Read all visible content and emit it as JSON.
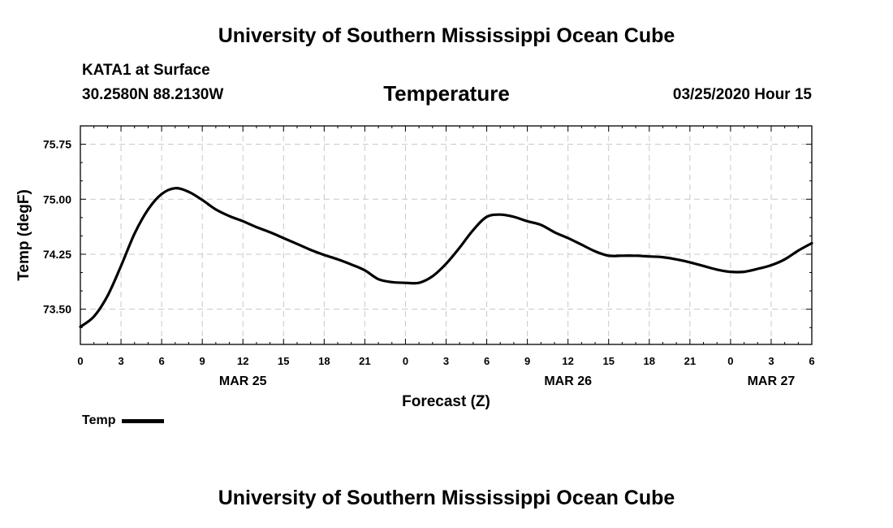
{
  "header": {
    "title": "University of Southern Mississippi Ocean Cube",
    "station": "KATA1 at Surface",
    "coords": "30.2580N 88.2130W",
    "chart_title": "Temperature",
    "issued": "03/25/2020 Hour 15"
  },
  "footer": {
    "title": "University of Southern Mississippi Ocean Cube"
  },
  "chart_data": {
    "type": "line",
    "title": "Temperature",
    "xlabel": "Forecast (Z)",
    "ylabel": "Temp (degF)",
    "xlim": [
      0,
      54
    ],
    "ylim": [
      73.02,
      76.0
    ],
    "x_ticks": [
      0,
      3,
      6,
      9,
      12,
      15,
      18,
      21,
      24,
      27,
      30,
      33,
      36,
      39,
      42,
      45,
      48,
      51,
      54
    ],
    "x_tick_labels": [
      "0",
      "3",
      "6",
      "9",
      "12",
      "15",
      "18",
      "21",
      "0",
      "3",
      "6",
      "9",
      "12",
      "15",
      "18",
      "21",
      "0",
      "3",
      "6"
    ],
    "date_labels": [
      {
        "at": 12,
        "label": "MAR 25"
      },
      {
        "at": 36,
        "label": "MAR 26"
      },
      {
        "at": 51,
        "label": "MAR 27"
      }
    ],
    "y_ticks": [
      73.5,
      74.25,
      75.0,
      75.75
    ],
    "y_tick_labels": [
      "73.50",
      "74.25",
      "75.00",
      "75.75"
    ],
    "grid": true,
    "legend_position": "bottom-left",
    "series": [
      {
        "name": "Temp",
        "color": "#000000",
        "x": [
          0,
          1,
          2,
          3,
          4,
          5,
          6,
          7,
          8,
          9,
          10,
          11,
          12,
          13,
          14,
          15,
          16,
          17,
          18,
          19,
          20,
          21,
          22,
          23,
          24,
          25,
          26,
          27,
          28,
          29,
          30,
          31,
          32,
          33,
          34,
          35,
          36,
          37,
          38,
          39,
          40,
          41,
          42,
          43,
          44,
          45,
          46,
          47,
          48,
          49,
          50,
          51,
          52,
          53,
          54
        ],
        "values": [
          73.26,
          73.4,
          73.68,
          74.09,
          74.53,
          74.86,
          75.07,
          75.15,
          75.1,
          74.99,
          74.86,
          74.77,
          74.7,
          74.62,
          74.55,
          74.47,
          74.39,
          74.31,
          74.24,
          74.18,
          74.11,
          74.03,
          73.91,
          73.87,
          73.86,
          73.86,
          73.95,
          74.12,
          74.34,
          74.58,
          74.76,
          74.79,
          74.76,
          74.7,
          74.65,
          74.55,
          74.47,
          74.38,
          74.29,
          74.23,
          74.23,
          74.23,
          74.22,
          74.21,
          74.18,
          74.14,
          74.09,
          74.04,
          74.01,
          74.01,
          74.05,
          74.1,
          74.18,
          74.3,
          74.4
        ]
      }
    ]
  }
}
